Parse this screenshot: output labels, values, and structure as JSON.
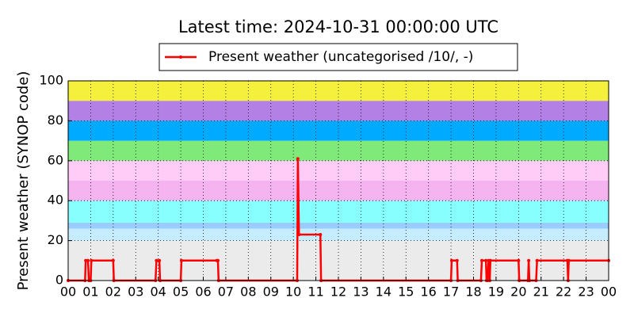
{
  "chart_data": {
    "type": "line",
    "title": "Latest time: 2024-10-31 00:00:00 UTC",
    "y_label": "Present weather (SYNOP code)",
    "x": [
      0,
      0.75,
      0.78,
      0.88,
      0.92,
      1.0,
      1.03,
      2.0,
      2.03,
      3.88,
      3.92,
      4.05,
      4.08,
      5.0,
      5.03,
      6.6,
      6.65,
      6.68,
      10.17,
      10.2,
      10.25,
      11.2,
      11.23,
      17.0,
      17.03,
      17.27,
      17.3,
      18.33,
      18.37,
      18.55,
      18.58,
      18.62,
      18.67,
      18.72,
      18.75,
      20.0,
      20.03,
      20.42,
      20.45,
      20.48,
      20.78,
      20.82,
      22.17,
      22.2,
      22.23,
      24.0
    ],
    "series": [
      {
        "name": "Present weather (uncategorised /10/, -)",
        "color": "#ff0000",
        "values": [
          0,
          0,
          10,
          10,
          0,
          0,
          10,
          10,
          0,
          0,
          10,
          10,
          0,
          0,
          10,
          10,
          10,
          0,
          0,
          61,
          23,
          23,
          0,
          0,
          10,
          10,
          0,
          0,
          10,
          10,
          0,
          0,
          10,
          0,
          10,
          10,
          0,
          0,
          10,
          0,
          0,
          10,
          10,
          0,
          10,
          10
        ]
      }
    ],
    "xlim": [
      0,
      24
    ],
    "xticks": [
      {
        "value": 0,
        "label": "00"
      },
      {
        "value": 1,
        "label": "01"
      },
      {
        "value": 2,
        "label": "02"
      },
      {
        "value": 3,
        "label": "03"
      },
      {
        "value": 4,
        "label": "04"
      },
      {
        "value": 5,
        "label": "05"
      },
      {
        "value": 6,
        "label": "06"
      },
      {
        "value": 7,
        "label": "07"
      },
      {
        "value": 8,
        "label": "08"
      },
      {
        "value": 9,
        "label": "09"
      },
      {
        "value": 10,
        "label": "10"
      },
      {
        "value": 11,
        "label": "11"
      },
      {
        "value": 12,
        "label": "12"
      },
      {
        "value": 13,
        "label": "13"
      },
      {
        "value": 14,
        "label": "14"
      },
      {
        "value": 15,
        "label": "15"
      },
      {
        "value": 16,
        "label": "16"
      },
      {
        "value": 17,
        "label": "17"
      },
      {
        "value": 18,
        "label": "18"
      },
      {
        "value": 19,
        "label": "19"
      },
      {
        "value": 20,
        "label": "20"
      },
      {
        "value": 21,
        "label": "21"
      },
      {
        "value": 22,
        "label": "22"
      },
      {
        "value": 23,
        "label": "23"
      },
      {
        "value": 24,
        "label": "00"
      }
    ],
    "ylim": [
      0,
      100
    ],
    "yticks": [
      0,
      20,
      40,
      60,
      80,
      100
    ],
    "grid": true,
    "legend": "top",
    "background_bands": [
      {
        "from": 0,
        "to": 20,
        "color": "#ebebeb"
      },
      {
        "from": 20,
        "to": 26,
        "color": "#c6ecff"
      },
      {
        "from": 26,
        "to": 29,
        "color": "#99ccff"
      },
      {
        "from": 29,
        "to": 40,
        "color": "#88ffff"
      },
      {
        "from": 40,
        "to": 50,
        "color": "#f5b3f0"
      },
      {
        "from": 50,
        "to": 60,
        "color": "#ffccf8"
      },
      {
        "from": 60,
        "to": 70,
        "color": "#7fe97a"
      },
      {
        "from": 70,
        "to": 80,
        "color": "#00aaff"
      },
      {
        "from": 80,
        "to": 90,
        "color": "#b380e6"
      },
      {
        "from": 90,
        "to": 100,
        "color": "#f5f03c"
      }
    ]
  }
}
